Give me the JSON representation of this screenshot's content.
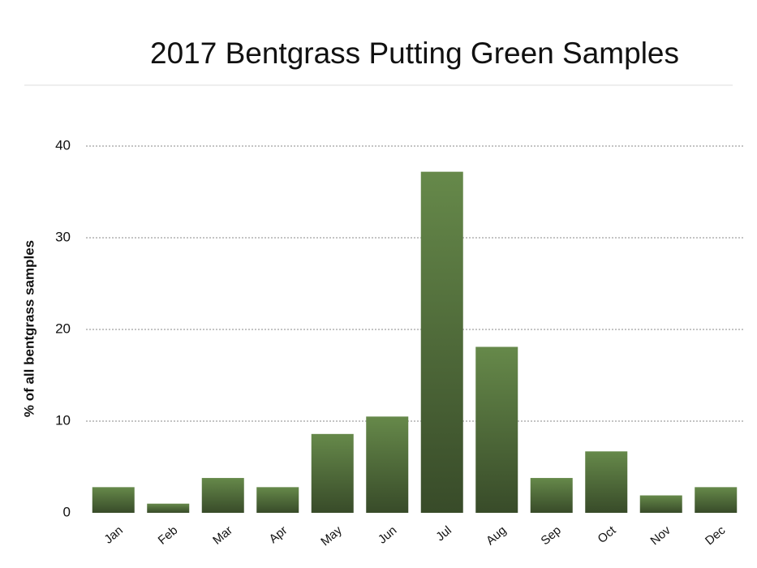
{
  "chart_data": {
    "type": "bar",
    "title": "2017 Bentgrass Putting Green Samples",
    "y_label": "% of all bentgrass samples",
    "categories": [
      "Jan",
      "Feb",
      "Mar",
      "Apr",
      "May",
      "Jun",
      "Jul",
      "Aug",
      "Sep",
      "Oct",
      "Nov",
      "Dec"
    ],
    "values": [
      2.8,
      1.0,
      3.8,
      2.8,
      8.6,
      10.5,
      37.2,
      18.1,
      3.8,
      6.7,
      1.9,
      2.8
    ],
    "color": "#66894a",
    "ylim": [
      0,
      40
    ],
    "yticks": [
      0,
      10,
      20,
      30,
      40
    ],
    "grid": true
  }
}
